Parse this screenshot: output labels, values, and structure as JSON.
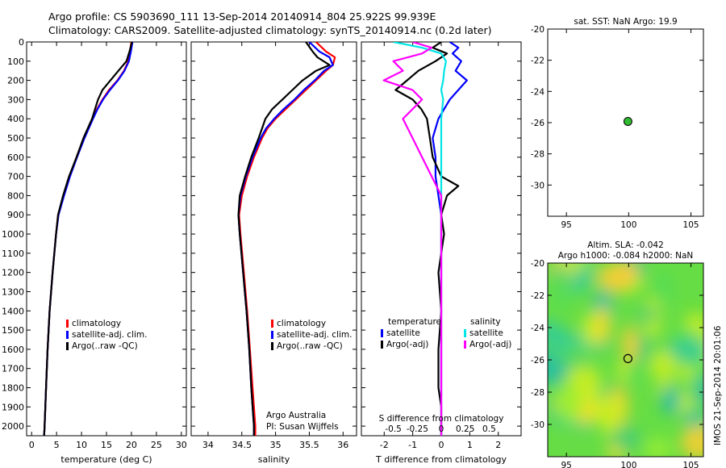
{
  "header": {
    "line1": "Argo profile: CS 5903690_111 13-Sep-2014 20140914_804 25.922S 99.939E",
    "line2": "Climatology: CARS2009. Satellite-adjusted climatology: synTS_20140914.nc (0.2d later)"
  },
  "footer": {
    "credit_line1": "Argo Australia",
    "credit_line2": "PI: Susan Wijffels",
    "imos_stamp": "IMOS 21-Sep-2014 20:01:06"
  },
  "colors": {
    "climatology": "#ff0000",
    "satellite_clim": "#0000ff",
    "argo": "#000000",
    "salinity_satellite": "#00e5e5",
    "salinity_argo": "#ff00ff",
    "marker": "#33bb33"
  },
  "chart_data": [
    {
      "id": "temperature",
      "type": "line",
      "xlabel": "temperature (deg C)",
      "ylabel": "",
      "xlim": [
        -1,
        31
      ],
      "ylim": [
        2050,
        0
      ],
      "xticks": [
        0,
        5,
        10,
        15,
        20,
        25,
        30
      ],
      "yticks": [
        0,
        100,
        200,
        300,
        400,
        500,
        600,
        700,
        800,
        900,
        1000,
        1100,
        1200,
        1300,
        1400,
        1500,
        1600,
        1700,
        1800,
        1900,
        2000
      ],
      "legend": [
        "climatology",
        "satellite-adj. clim.",
        "Argo(..raw -QC)"
      ],
      "series": [
        {
          "name": "climatology",
          "color": "#ff0000",
          "depth": [
            0,
            50,
            100,
            150,
            200,
            250,
            300,
            350,
            400,
            500,
            600,
            700,
            800,
            900,
            1000,
            1200,
            1400,
            1600,
            1800,
            2000,
            2050
          ],
          "value": [
            20.0,
            19.7,
            19.4,
            18.5,
            17.2,
            15.5,
            14.2,
            13.1,
            12.2,
            10.5,
            9.0,
            7.6,
            6.4,
            5.3,
            4.9,
            4.2,
            3.6,
            3.2,
            2.9,
            2.6,
            2.5
          ]
        },
        {
          "name": "satellite-adj. clim.",
          "color": "#0000ff",
          "depth": [
            0,
            50,
            100,
            150,
            200,
            250,
            300,
            350,
            400,
            500,
            600,
            700,
            800,
            900,
            1000,
            1200,
            1400,
            1600,
            1800,
            2000,
            2050
          ],
          "value": [
            20.2,
            19.9,
            19.5,
            18.6,
            17.3,
            15.7,
            14.3,
            13.2,
            12.3,
            10.6,
            9.1,
            7.7,
            6.5,
            5.4,
            4.9,
            4.2,
            3.6,
            3.2,
            2.9,
            2.6,
            2.5
          ]
        },
        {
          "name": "Argo(..raw -QC)",
          "color": "#000000",
          "depth": [
            0,
            50,
            100,
            150,
            200,
            250,
            300,
            350,
            400,
            500,
            600,
            700,
            800,
            900,
            1000,
            1200,
            1400,
            1600,
            1800,
            2000,
            2050
          ],
          "value": [
            20.1,
            19.6,
            19.0,
            17.4,
            15.8,
            14.2,
            13.3,
            12.7,
            12.1,
            10.4,
            9.0,
            7.5,
            6.3,
            5.3,
            4.9,
            4.2,
            3.6,
            3.2,
            2.9,
            2.6,
            2.5
          ]
        }
      ]
    },
    {
      "id": "salinity",
      "type": "line",
      "xlabel": "salinity",
      "ylabel": "",
      "xlim": [
        33.75,
        36.2
      ],
      "ylim": [
        2050,
        0
      ],
      "xticks": [
        34,
        34.5,
        35,
        35.5,
        36
      ],
      "xtick_labels": [
        "34",
        "34.5",
        "35",
        "35.5",
        "36"
      ],
      "legend": [
        "climatology",
        "satellite-adj. clim.",
        "Argo(..raw -QC)"
      ],
      "series": [
        {
          "name": "climatology",
          "color": "#ff0000",
          "depth": [
            0,
            50,
            80,
            120,
            150,
            200,
            250,
            300,
            350,
            400,
            450,
            500,
            600,
            700,
            800,
            900,
            1000,
            1200,
            1400,
            1600,
            1800,
            2000,
            2050
          ],
          "value": [
            35.6,
            35.75,
            35.88,
            35.85,
            35.75,
            35.6,
            35.45,
            35.3,
            35.15,
            35.0,
            34.88,
            34.8,
            34.68,
            34.58,
            34.5,
            34.46,
            34.48,
            34.53,
            34.58,
            34.62,
            34.66,
            34.7,
            34.7
          ]
        },
        {
          "name": "satellite-adj. clim.",
          "color": "#0000ff",
          "depth": [
            0,
            50,
            80,
            120,
            150,
            200,
            250,
            300,
            350,
            400,
            450,
            500,
            600,
            700,
            800,
            900,
            1000,
            1200,
            1400,
            1600,
            1800,
            2000,
            2050
          ],
          "value": [
            35.5,
            35.65,
            35.8,
            35.85,
            35.72,
            35.58,
            35.42,
            35.28,
            35.12,
            34.98,
            34.86,
            34.78,
            34.66,
            34.56,
            34.48,
            34.45,
            34.47,
            34.52,
            34.57,
            34.61,
            34.64,
            34.68,
            34.68
          ]
        },
        {
          "name": "Argo(..raw -QC)",
          "color": "#000000",
          "depth": [
            0,
            50,
            80,
            120,
            150,
            200,
            250,
            300,
            350,
            400,
            450,
            500,
            600,
            700,
            800,
            900,
            1000,
            1200,
            1400,
            1600,
            1800,
            2000,
            2050
          ],
          "value": [
            35.45,
            35.55,
            35.62,
            35.8,
            35.6,
            35.4,
            35.25,
            35.1,
            34.95,
            34.85,
            34.8,
            34.75,
            34.64,
            34.55,
            34.47,
            34.45,
            34.47,
            34.52,
            34.57,
            34.61,
            34.64,
            34.68,
            34.68
          ]
        }
      ]
    },
    {
      "id": "difference",
      "type": "line",
      "xlabel": "T difference from climatology",
      "top_label": "S difference from climatology",
      "ylabel": "",
      "xlim": [
        -2.8,
        2.8
      ],
      "ylim": [
        2050,
        0
      ],
      "xticks": [
        -2,
        -1,
        0,
        1,
        2
      ],
      "salinity_ticks": [
        -0.5,
        -0.25,
        0,
        0.25,
        0.5
      ],
      "salinity_tick_labels": [
        "-0.5",
        "-0.25",
        "0",
        "0.25",
        "0.5"
      ],
      "legend": {
        "temperature_heading": "temperature",
        "salinity_heading": "salinity",
        "items": [
          "satellite",
          "Argo(-adj)",
          "satellite",
          "Argo(-adj)"
        ]
      },
      "series": [
        {
          "name": "temperature satellite",
          "color": "#0000ff",
          "depth": [
            0,
            30,
            60,
            100,
            150,
            200,
            250,
            300,
            350,
            400,
            500,
            600,
            700,
            800,
            900,
            1000,
            1200,
            1400,
            1600,
            1800,
            2000,
            2050
          ],
          "value": [
            0.3,
            0.6,
            0.4,
            0.7,
            0.5,
            0.9,
            0.6,
            0.3,
            0.1,
            -0.1,
            -0.3,
            -0.2,
            -0.2,
            -0.1,
            0.0,
            0.0,
            0.0,
            0.0,
            0.0,
            0.0,
            0.0,
            0.0
          ]
        },
        {
          "name": "temperature Argo(-adj)",
          "color": "#000000",
          "depth": [
            0,
            30,
            60,
            100,
            150,
            200,
            250,
            300,
            350,
            400,
            500,
            600,
            700,
            750,
            800,
            900,
            1000,
            1200,
            1400,
            1600,
            1800,
            1900,
            2000,
            2050
          ],
          "value": [
            0.0,
            -0.3,
            0.2,
            -0.2,
            -0.8,
            -1.2,
            -1.6,
            -1.0,
            -0.7,
            -0.5,
            -0.4,
            -0.3,
            0.0,
            0.6,
            0.2,
            0.0,
            0.1,
            -0.1,
            0.0,
            -0.1,
            -0.1,
            0.0,
            0.0,
            0.0
          ]
        },
        {
          "name": "salinity satellite",
          "color": "#00e5e5",
          "depth": [
            0,
            30,
            60,
            100,
            150,
            200,
            250,
            300,
            400,
            500,
            600,
            700,
            800,
            900,
            1000,
            1200,
            1400,
            1600,
            1800,
            2000,
            2050
          ],
          "value": [
            -0.5,
            -0.2,
            0.0,
            0.05,
            0.03,
            0.02,
            0.0,
            0.02,
            0.0,
            0.0,
            0.0,
            0.0,
            0.0,
            0.0,
            0.0,
            0.0,
            0.0,
            0.0,
            0.0,
            0.0,
            0.0
          ]
        },
        {
          "name": "salinity Argo(-adj)",
          "color": "#ff00ff",
          "depth": [
            0,
            30,
            60,
            100,
            150,
            200,
            250,
            300,
            400,
            500,
            600,
            700,
            800,
            900,
            1000,
            1200,
            1400,
            1600,
            1800,
            2000,
            2050
          ],
          "value": [
            -0.3,
            -0.1,
            -0.2,
            -0.5,
            -0.4,
            -0.6,
            -0.3,
            -0.2,
            -0.4,
            -0.3,
            -0.2,
            -0.1,
            0.0,
            0.0,
            0.0,
            0.0,
            0.0,
            0.0,
            0.0,
            0.0,
            0.0
          ]
        }
      ]
    },
    {
      "id": "sst_map",
      "type": "scatter",
      "title": "sat. SST: NaN Argo: 19.9",
      "xlim": [
        93.5,
        106
      ],
      "ylim": [
        -32,
        -20
      ],
      "xticks": [
        95,
        100,
        105
      ],
      "yticks": [
        -20,
        -22,
        -24,
        -26,
        -28,
        -30
      ],
      "points": [
        {
          "x": 99.94,
          "y": -25.92
        }
      ]
    },
    {
      "id": "sla_map",
      "type": "heatmap",
      "title_line1": "Altim. SLA: -0.042",
      "title_line2": "Argo h1000: -0.084 h2000: NaN",
      "xlim": [
        93.5,
        106
      ],
      "ylim": [
        -32,
        -20
      ],
      "xticks": [
        95,
        100,
        105
      ],
      "yticks": [
        -20,
        -22,
        -24,
        -26,
        -28,
        -30
      ],
      "points": [
        {
          "x": 99.94,
          "y": -25.92
        }
      ]
    }
  ]
}
